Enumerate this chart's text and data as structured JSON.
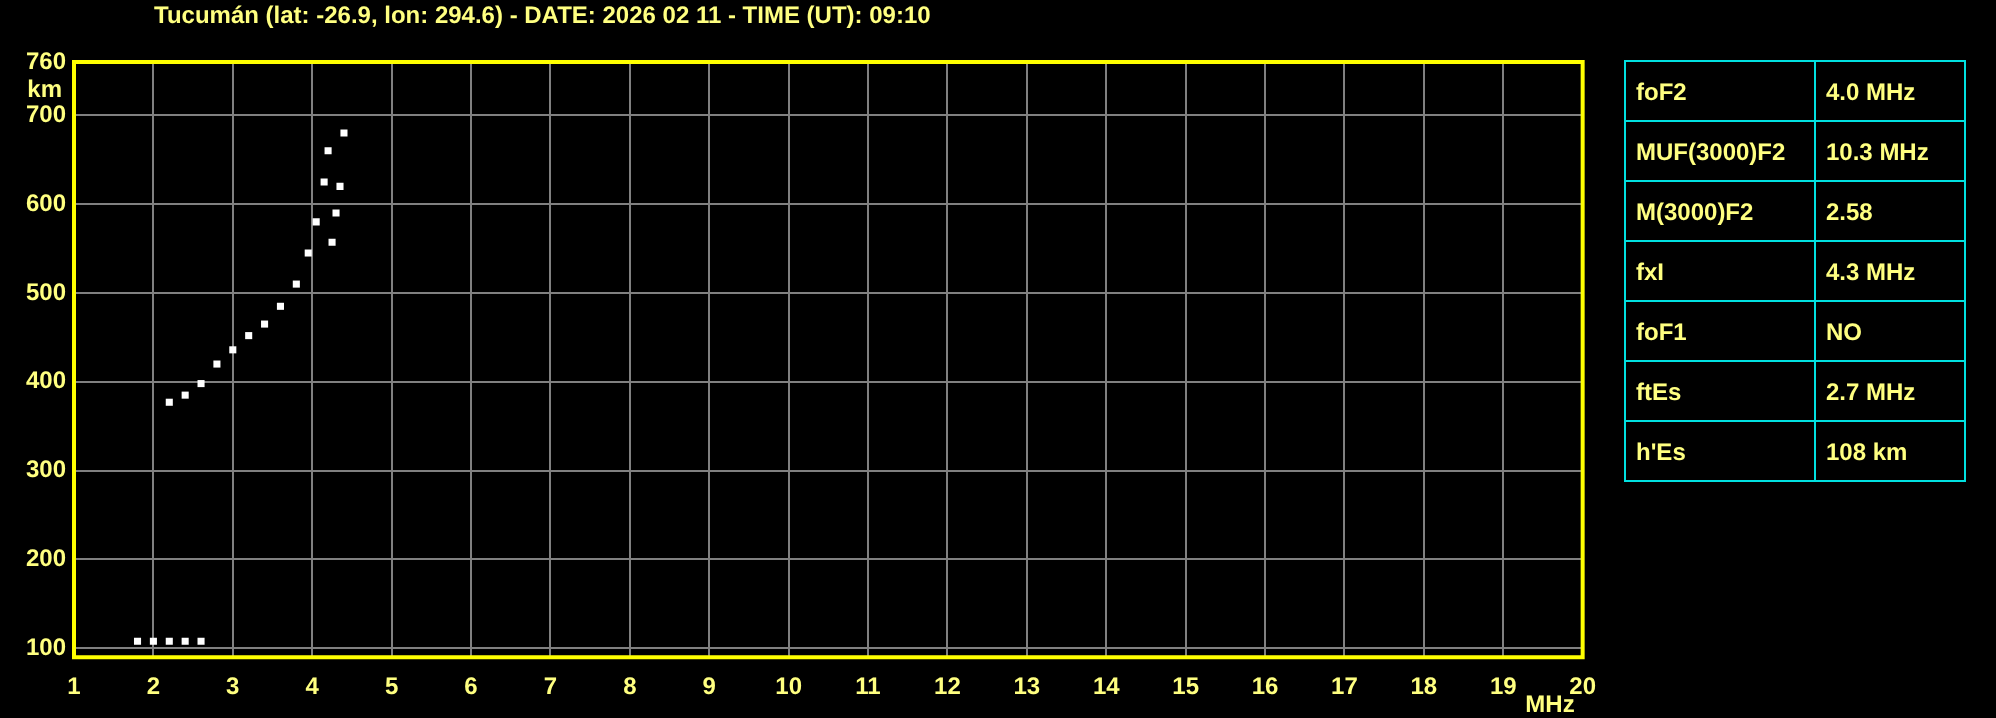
{
  "chart_data": [
    {
      "type": "scatter",
      "title": "Tucumán (lat: -26.9, lon: 294.6) - DATE: 2026 02 11 - TIME (UT): 09:10",
      "xlabel": "MHz",
      "ylabel": "km",
      "xlim": [
        1,
        20
      ],
      "xticks": [
        1,
        2,
        3,
        4,
        5,
        6,
        7,
        8,
        9,
        10,
        11,
        12,
        13,
        14,
        15,
        16,
        17,
        18,
        19,
        20
      ],
      "ylim": [
        90,
        760
      ],
      "yticks": [
        100,
        200,
        300,
        400,
        500,
        600,
        700,
        760
      ],
      "grid": true,
      "legend": false,
      "marker": "square",
      "series": [
        {
          "color": "#ffffff",
          "x": [
            2.2,
            2.4,
            2.6,
            2.8,
            3.0,
            3.2,
            3.4,
            3.6,
            3.8,
            3.95,
            4.05,
            4.15,
            4.2,
            4.25,
            4.3,
            4.35,
            4.4,
            1.8,
            2.0,
            2.2,
            2.4,
            2.6
          ],
          "values": [
            377,
            385,
            398,
            420,
            436,
            452,
            465,
            485,
            510,
            545,
            580,
            625,
            660,
            557,
            590,
            620,
            680,
            108,
            108,
            108,
            108,
            108
          ]
        }
      ]
    },
    {
      "type": "other",
      "annotations": [
        "foF2",
        "4.0 MHz",
        "MUF(3000)F2",
        "10.3 MHz",
        "M(3000)F2",
        "2.58",
        "fxI",
        "4.3 MHz",
        "foF1",
        "NO",
        "ftEs",
        "2.7 MHz",
        "h'Es",
        "108 km"
      ]
    }
  ]
}
